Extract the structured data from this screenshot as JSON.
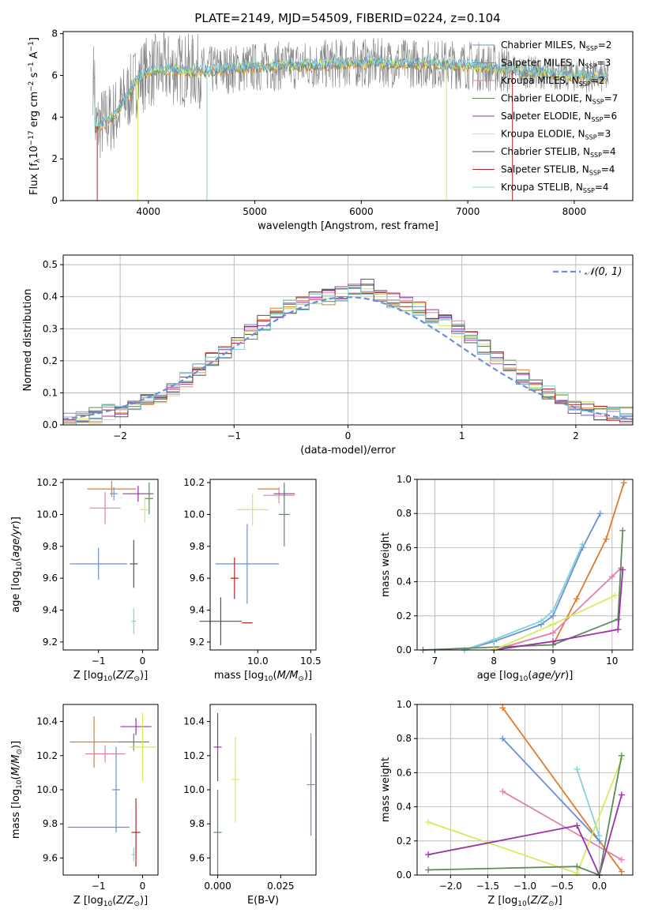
{
  "title": "PLATE=2149, MJD=54509, FIBERID=0224, z=0.104",
  "colors": {
    "Chabrier MILES": "#6a8fd8",
    "Salpeter MILES": "#e07b2c",
    "Kroupa MILES": "#e57fb0",
    "Chabrier ELODIE": "#5e8a5e",
    "Salpeter ELODIE": "#9b30a8",
    "Kroupa ELODIE": "#d4ec5c",
    "Chabrier STELIB": "#555555",
    "Salpeter STELIB": "#b22222",
    "Kroupa STELIB": "#7fd4d4",
    "data": "#808080",
    "normal": "#6a8fd8"
  },
  "chart_data": [
    {
      "type": "line",
      "panel": "spectrum",
      "title": "PLATE=2149, MJD=54509, FIBERID=0224, z=0.104",
      "xlabel": "wavelength [Angstrom, rest frame]",
      "ylabel": "Flux [f_λ10^-17 erg cm^-2 s^-1 A^-1]",
      "xlim": [
        3200,
        8550
      ],
      "ylim": [
        0,
        8.1
      ],
      "xticks": [
        4000,
        5000,
        6000,
        7000,
        8000
      ],
      "yticks": [
        0,
        2,
        4,
        6,
        8
      ],
      "legend": "top-right",
      "series": [
        {
          "name": "Chabrier MILES, N_SSP=2"
        },
        {
          "name": "Salpeter MILES, N_SSP=3"
        },
        {
          "name": "Kroupa MILES, N_SSP=2"
        },
        {
          "name": "Chabrier ELODIE, N_SSP=7"
        },
        {
          "name": "Salpeter ELODIE, N_SSP=6"
        },
        {
          "name": "Kroupa ELODIE, N_SSP=3"
        },
        {
          "name": "Chabrier STELIB, N_SSP=4"
        },
        {
          "name": "Salpeter STELIB, N_SSP=4"
        },
        {
          "name": "Kroupa STELIB, N_SSP=4"
        }
      ],
      "data_envelope": [
        [
          3500,
          3.5
        ],
        [
          3600,
          3.8
        ],
        [
          3700,
          4.2
        ],
        [
          3800,
          5.0
        ],
        [
          3900,
          5.8
        ],
        [
          4000,
          6.2
        ],
        [
          4200,
          6.3
        ],
        [
          4500,
          6.2
        ],
        [
          5000,
          6.4
        ],
        [
          5500,
          6.5
        ],
        [
          6000,
          6.6
        ],
        [
          6500,
          6.6
        ],
        [
          7000,
          6.5
        ],
        [
          7500,
          6.2
        ],
        [
          8000,
          6.0
        ],
        [
          8300,
          5.9
        ]
      ]
    },
    {
      "type": "line",
      "panel": "residual-histogram",
      "xlabel": "(data-model)/error",
      "ylabel": "Normed distribution",
      "xlim": [
        -2.5,
        2.5
      ],
      "ylim": [
        0,
        0.53
      ],
      "xticks": [
        -2,
        -1,
        0,
        1,
        2
      ],
      "yticks": [
        0.0,
        0.1,
        0.2,
        0.3,
        0.4,
        0.5
      ],
      "legend": "top-right",
      "reference": {
        "name": "N(0,1)",
        "style": "dashed"
      },
      "grid": true,
      "histogram": [
        0.02,
        0.025,
        0.03,
        0.04,
        0.05,
        0.06,
        0.07,
        0.09,
        0.11,
        0.14,
        0.17,
        0.2,
        0.23,
        0.26,
        0.29,
        0.32,
        0.35,
        0.37,
        0.38,
        0.39,
        0.4,
        0.41,
        0.42,
        0.43,
        0.41,
        0.39,
        0.38,
        0.36,
        0.34,
        0.32,
        0.3,
        0.27,
        0.24,
        0.21,
        0.18,
        0.15,
        0.12,
        0.1,
        0.08,
        0.06,
        0.05,
        0.04,
        0.035,
        0.03
      ]
    },
    {
      "type": "scatter",
      "panel": "age-vs-Z",
      "xlabel": "Z [log10(Z/Z⊙)]",
      "ylabel": "age [log10(age/yr)]",
      "xlim": [
        -1.8,
        0.35
      ],
      "ylim": [
        9.15,
        10.22
      ],
      "xticks": [
        -1,
        0
      ],
      "yticks": [
        9.2,
        9.4,
        9.6,
        9.8,
        10.0,
        10.2
      ],
      "points": [
        {
          "series": "Salpeter MILES",
          "x": -0.7,
          "y": 10.16,
          "xerr": 0.55,
          "yerr": 0.05
        },
        {
          "series": "Chabrier MILES",
          "x": -0.65,
          "y": 10.13,
          "xerr": 0.0,
          "yerr": 0.04
        },
        {
          "series": "Kroupa MILES",
          "x": -0.85,
          "y": 10.04,
          "xerr": 0.35,
          "yerr": 0.1
        },
        {
          "series": "Chabrier MILES",
          "x": -1.0,
          "y": 9.69,
          "xerr": 0.65,
          "yerr": 0.1
        },
        {
          "series": "Salpeter ELODIE",
          "x": -0.1,
          "y": 10.13,
          "xerr": 0.35,
          "yerr": 0.05
        },
        {
          "series": "Chabrier ELODIE",
          "x": 0.15,
          "y": 10.1,
          "xerr": 0.0,
          "yerr": 0.1
        },
        {
          "series": "Kroupa ELODIE",
          "x": 0.05,
          "y": 10.03,
          "xerr": 0.1,
          "yerr": 0.08
        },
        {
          "series": "Chabrier STELIB",
          "x": -0.2,
          "y": 9.69,
          "xerr": 0.0,
          "yerr": 0.15
        },
        {
          "series": "Kroupa STELIB",
          "x": -0.2,
          "y": 9.33,
          "xerr": 0.05,
          "yerr": 0.08
        }
      ]
    },
    {
      "type": "scatter",
      "panel": "age-vs-mass",
      "xlabel": "mass [log10(M/M⊙)]",
      "ylabel": "",
      "xlim": [
        9.55,
        10.55
      ],
      "ylim": [
        9.15,
        10.22
      ],
      "xticks": [
        10.0,
        10.5
      ],
      "yticks": [
        9.2,
        9.4,
        9.6,
        9.8,
        10.0,
        10.2
      ],
      "points": [
        {
          "series": "Salpeter MILES",
          "x": 10.1,
          "y": 10.16,
          "xerr": 0.1,
          "yerr": 0.0
        },
        {
          "series": "Kroupa MILES",
          "x": 10.2,
          "y": 10.12,
          "xerr": 0.15,
          "yerr": 0.05
        },
        {
          "series": "Salpeter ELODIE",
          "x": 10.25,
          "y": 10.13,
          "xerr": 0.1,
          "yerr": 0.02
        },
        {
          "series": "Kroupa ELODIE",
          "x": 9.95,
          "y": 10.03,
          "xerr": 0.15,
          "yerr": 0.1
        },
        {
          "series": "Chabrier ELODIE",
          "x": 10.25,
          "y": 10.0,
          "xerr": 0.05,
          "yerr": 0.2
        },
        {
          "series": "Chabrier MILES",
          "x": 9.9,
          "y": 9.69,
          "xerr": 0.3,
          "yerr": 0.25
        },
        {
          "series": "Salpeter STELIB",
          "x": 9.78,
          "y": 9.6,
          "xerr": 0.0,
          "yerr": 0.13
        },
        {
          "series": "Chabrier STELIB",
          "x": 9.65,
          "y": 9.33,
          "xerr": 0.2,
          "yerr": 0.15
        },
        {
          "series": "Salpeter STELIB",
          "x": 9.9,
          "y": 9.32,
          "xerr": 0.05,
          "yerr": 0.0
        }
      ]
    },
    {
      "type": "line",
      "panel": "mass-weight-vs-age",
      "xlabel": "age [log10(age/yr)]",
      "ylabel": "mass weight",
      "xlim": [
        6.7,
        10.35
      ],
      "ylim": [
        0,
        1.0
      ],
      "xticks": [
        7,
        8,
        9,
        10
      ],
      "yticks": [
        0.0,
        0.2,
        0.4,
        0.6,
        0.8,
        1.0
      ],
      "grid": true,
      "series": [
        {
          "series": "Chabrier MILES",
          "x": [
            7.5,
            8.0,
            8.8,
            9.0,
            9.5,
            9.8
          ],
          "y": [
            0.0,
            0.05,
            0.15,
            0.2,
            0.6,
            0.8
          ]
        },
        {
          "series": "Kroupa STELIB",
          "x": [
            7.5,
            8.0,
            8.8,
            9.0,
            9.5
          ],
          "y": [
            0.0,
            0.06,
            0.17,
            0.23,
            0.62
          ]
        },
        {
          "series": "Salpeter MILES",
          "x": [
            9.0,
            9.4,
            9.9,
            10.2
          ],
          "y": [
            0.03,
            0.3,
            0.65,
            0.98
          ]
        },
        {
          "series": "Kroupa MILES",
          "x": [
            8.0,
            9.0,
            10.0,
            10.15
          ],
          "y": [
            0.0,
            0.1,
            0.43,
            0.48
          ]
        },
        {
          "series": "Chabrier ELODIE",
          "x": [
            6.8,
            9.0,
            10.1,
            10.18
          ],
          "y": [
            0.0,
            0.03,
            0.18,
            0.7
          ]
        },
        {
          "series": "Salpeter ELODIE",
          "x": [
            8.0,
            9.0,
            10.1,
            10.18
          ],
          "y": [
            0.0,
            0.05,
            0.12,
            0.47
          ]
        },
        {
          "series": "Kroupa ELODIE",
          "x": [
            8.0,
            9.0,
            10.05
          ],
          "y": [
            0.0,
            0.15,
            0.32
          ]
        }
      ]
    },
    {
      "type": "scatter",
      "panel": "mass-vs-Z",
      "xlabel": "Z [log10(Z/Z⊙)]",
      "ylabel": "mass [log10(M/M⊙)]",
      "xlim": [
        -1.8,
        0.35
      ],
      "ylim": [
        9.5,
        10.5
      ],
      "xticks": [
        -1,
        0
      ],
      "yticks": [
        9.6,
        9.8,
        10.0,
        10.2,
        10.4
      ],
      "points": [
        {
          "series": "Salpeter ELODIE",
          "x": -0.15,
          "y": 10.37,
          "xerr": 0.35,
          "yerr": 0.05
        },
        {
          "series": "Salpeter MILES",
          "x": -1.1,
          "y": 10.28,
          "xerr": 0.55,
          "yerr": 0.15
        },
        {
          "series": "Chabrier ELODIE",
          "x": -0.2,
          "y": 10.28,
          "xerr": 0.35,
          "yerr": 0.05
        },
        {
          "series": "Kroupa ELODIE",
          "x": 0.0,
          "y": 10.25,
          "xerr": 0.3,
          "yerr": 0.2
        },
        {
          "series": "Kroupa MILES",
          "x": -0.85,
          "y": 10.21,
          "xerr": 0.45,
          "yerr": 0.05
        },
        {
          "series": "Chabrier MILES",
          "x": -0.6,
          "y": 10.0,
          "xerr": 0.0,
          "yerr": 0.25
        },
        {
          "series": "Chabrier MILES",
          "x": -1.0,
          "y": 9.78,
          "xerr": 0.7,
          "yerr": 0.0
        },
        {
          "series": "Salpeter STELIB",
          "x": -0.15,
          "y": 9.75,
          "xerr": 0.1,
          "yerr": 0.2
        },
        {
          "series": "Kroupa STELIB",
          "x": -0.2,
          "y": 9.62,
          "xerr": 0.05,
          "yerr": 0.04
        }
      ]
    },
    {
      "type": "scatter",
      "panel": "mass-vs-EBV",
      "xlabel": "E(B-V)",
      "ylabel": "",
      "xlim": [
        -0.003,
        0.039
      ],
      "ylim": [
        9.5,
        10.5
      ],
      "xticks": [
        0.0,
        0.025
      ],
      "yticks": [
        9.6,
        9.8,
        10.0,
        10.2,
        10.4
      ],
      "points": [
        {
          "series": "Salpeter ELODIE",
          "x": 0.0,
          "y": 10.25,
          "yerr": 0.2
        },
        {
          "series": "Chabrier ELODIE",
          "x": 0.0,
          "y": 9.75,
          "yerr": 0.25
        },
        {
          "series": "Kroupa ELODIE",
          "x": 0.007,
          "y": 10.06,
          "yerr": 0.25
        },
        {
          "series": "Chabrier MILES",
          "x": 0.037,
          "y": 10.03,
          "yerr": 0.3
        }
      ]
    },
    {
      "type": "line",
      "panel": "mass-weight-vs-Z",
      "xlabel": "Z [log10(Z/Z⊙)]",
      "ylabel": "mass weight",
      "xlim": [
        -2.45,
        0.45
      ],
      "ylim": [
        0,
        1.0
      ],
      "xticks": [
        -2.0,
        -1.5,
        -1.0,
        -0.5,
        0.0
      ],
      "yticks": [
        0.0,
        0.2,
        0.4,
        0.6,
        0.8,
        1.0
      ],
      "grid": true,
      "series": [
        {
          "series": "Salpeter MILES",
          "x": [
            -1.3,
            0.3
          ],
          "y": [
            0.98,
            0.02
          ]
        },
        {
          "series": "Chabrier MILES",
          "x": [
            -1.3,
            0.0
          ],
          "y": [
            0.8,
            0.2
          ]
        },
        {
          "series": "Kroupa STELIB",
          "x": [
            -0.3,
            0.0
          ],
          "y": [
            0.62,
            0.23
          ]
        },
        {
          "series": "Kroupa MILES",
          "x": [
            -1.3,
            0.3
          ],
          "y": [
            0.49,
            0.09
          ]
        },
        {
          "series": "Kroupa ELODIE",
          "x": [
            -2.3,
            -0.3,
            0.3
          ],
          "y": [
            0.31,
            0.01,
            0.68
          ]
        },
        {
          "series": "Salpeter ELODIE",
          "x": [
            -2.3,
            -0.3,
            0.0,
            0.3
          ],
          "y": [
            0.12,
            0.29,
            0.0,
            0.47
          ]
        },
        {
          "series": "Chabrier ELODIE",
          "x": [
            -2.3,
            -0.3,
            0.0,
            0.3
          ],
          "y": [
            0.03,
            0.05,
            0.0,
            0.7
          ]
        }
      ]
    }
  ]
}
